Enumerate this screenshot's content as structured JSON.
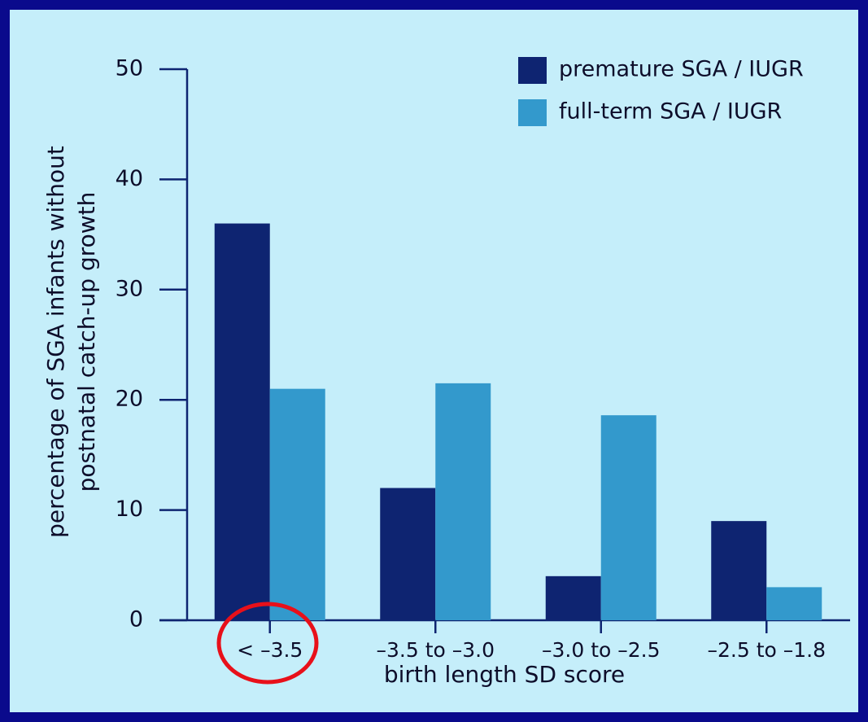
{
  "chart_data": {
    "type": "bar",
    "y_label": [
      "percentage of SGA infants without",
      "postnatal catch-up growth"
    ],
    "x_label": "birth length SD score",
    "categories": [
      "< –3.5",
      "–3.5 to –3.0",
      "–3.0 to –2.5",
      "–2.5 to –1.8"
    ],
    "series": [
      {
        "name": "premature SGA / IUGR",
        "color": "#0e2471",
        "values": [
          36,
          12,
          4,
          9
        ]
      },
      {
        "name": "full-term SGA / IUGR",
        "color": "#3399cc",
        "values": [
          21,
          21.5,
          18.6,
          3
        ]
      }
    ],
    "ylim": [
      0,
      50
    ],
    "yticks": [
      0,
      10,
      20,
      30,
      40,
      50
    ],
    "legend": "top-right"
  }
}
